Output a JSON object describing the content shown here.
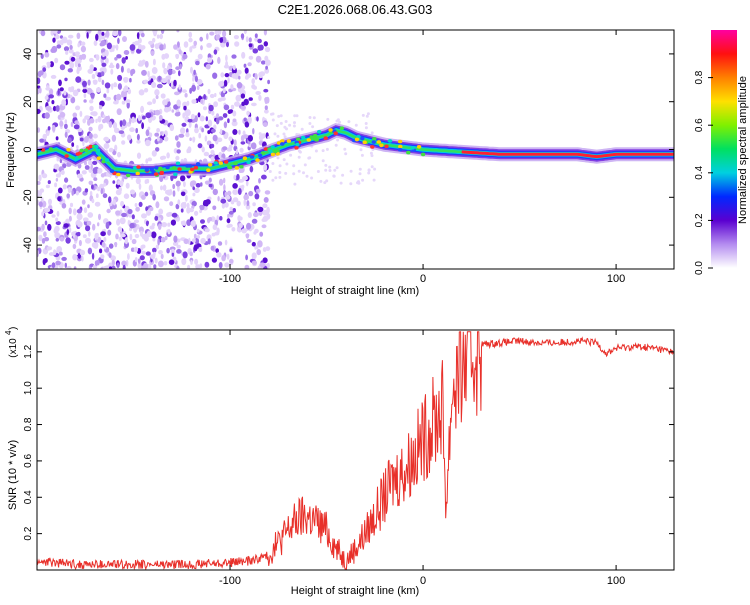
{
  "title": "C2E1.2026.068.06.43.G03",
  "chart_data": [
    {
      "type": "heatmap",
      "xlabel": "Height of straight line (km)",
      "ylabel": "Frequency (Hz)",
      "xlim": [
        -200,
        130
      ],
      "ylim": [
        -50,
        50
      ],
      "xticks": [
        -100,
        0,
        100
      ],
      "yticks": [
        -40,
        -20,
        0,
        20,
        40
      ],
      "colorbar": {
        "label": "Normalized spectral amplitude",
        "range": [
          0,
          1
        ],
        "ticks": [
          "0.0",
          "0.2",
          "0.4",
          "0.6",
          "0.8"
        ]
      },
      "ridge": [
        {
          "x": -200,
          "y": -2
        },
        {
          "x": -190,
          "y": 0
        },
        {
          "x": -180,
          "y": -4
        },
        {
          "x": -170,
          "y": 0
        },
        {
          "x": -160,
          "y": -8
        },
        {
          "x": -150,
          "y": -9
        },
        {
          "x": -140,
          "y": -9
        },
        {
          "x": -130,
          "y": -8
        },
        {
          "x": -120,
          "y": -8
        },
        {
          "x": -110,
          "y": -8
        },
        {
          "x": -100,
          "y": -6
        },
        {
          "x": -90,
          "y": -4
        },
        {
          "x": -80,
          "y": -1
        },
        {
          "x": -70,
          "y": 2
        },
        {
          "x": -60,
          "y": 4
        },
        {
          "x": -50,
          "y": 6
        },
        {
          "x": -45,
          "y": 8
        },
        {
          "x": -40,
          "y": 7
        },
        {
          "x": -35,
          "y": 5
        },
        {
          "x": -30,
          "y": 4
        },
        {
          "x": -20,
          "y": 2
        },
        {
          "x": -10,
          "y": 1
        },
        {
          "x": 0,
          "y": 0
        },
        {
          "x": 20,
          "y": -1
        },
        {
          "x": 40,
          "y": -2
        },
        {
          "x": 60,
          "y": -2
        },
        {
          "x": 80,
          "y": -2
        },
        {
          "x": 90,
          "y": -3
        },
        {
          "x": 100,
          "y": -2
        },
        {
          "x": 130,
          "y": -2
        }
      ],
      "noise_region": [
        -200,
        -85
      ]
    },
    {
      "type": "line",
      "xlabel": "Height of straight line (km)",
      "ylabel": "SNR (10 * v/v)",
      "y_multiplier": "(x10",
      "y_exponent": "4",
      "xlim": [
        -200,
        130
      ],
      "ylim": [
        0,
        1.32
      ],
      "xticks": [
        -100,
        0,
        100
      ],
      "yticks": [
        "0.2",
        "0.4",
        "0.6",
        "0.8",
        "1.0",
        "1.2"
      ],
      "series": [
        {
          "name": "SNR",
          "color": "#e8302a",
          "x": [
            -200,
            -180,
            -160,
            -140,
            -120,
            -100,
            -90,
            -80,
            -75,
            -70,
            -65,
            -60,
            -55,
            -50,
            -45,
            -40,
            -38,
            -35,
            -30,
            -25,
            -20,
            -15,
            -10,
            -5,
            0,
            5,
            10,
            12,
            15,
            20,
            25,
            30,
            40,
            50,
            60,
            70,
            80,
            90,
            95,
            100,
            110,
            120,
            130
          ],
          "values": [
            0.05,
            0.03,
            0.03,
            0.03,
            0.03,
            0.04,
            0.05,
            0.08,
            0.15,
            0.22,
            0.28,
            0.3,
            0.26,
            0.22,
            0.12,
            0.05,
            0.08,
            0.12,
            0.2,
            0.3,
            0.4,
            0.5,
            0.55,
            0.62,
            0.72,
            0.8,
            0.9,
            0.35,
            1.0,
            1.12,
            1.2,
            1.24,
            1.25,
            1.26,
            1.25,
            1.25,
            1.26,
            1.25,
            1.19,
            1.22,
            1.23,
            1.22,
            1.2
          ]
        }
      ]
    }
  ]
}
